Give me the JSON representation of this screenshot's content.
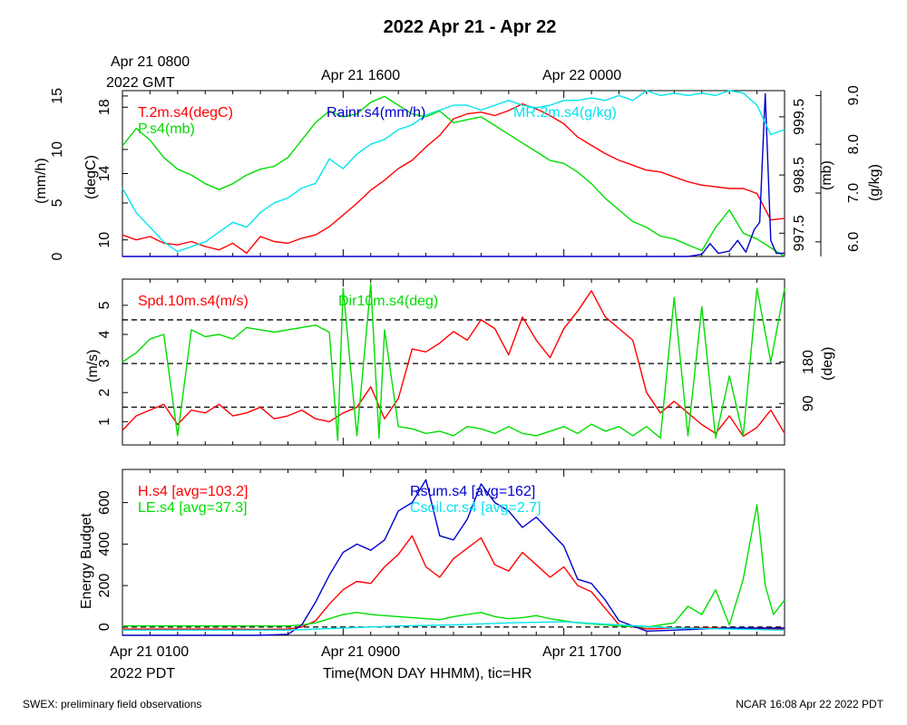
{
  "title": "2022 Apr 21 - Apr 22",
  "top_axis": {
    "first_label": [
      "Apr 21 0800",
      "2022 GMT"
    ],
    "labels": [
      "Apr 21 1600",
      "Apr 22 0000"
    ]
  },
  "bottom_axis": {
    "first_label": [
      "Apr 21 0100",
      "2022 PDT"
    ],
    "labels": [
      "Apr 21 0900",
      "Apr 21 1700"
    ],
    "xlabel": "Time(MON DAY HHMM), tic=HR"
  },
  "footer": {
    "left": "SWEX: preliminary field observations",
    "right": "NCAR 16:08 Apr 22 2022 PDT"
  },
  "colors": {
    "red": "#ff0000",
    "green": "#00dd00",
    "blue": "#0000cc",
    "cyan": "#00e5ee"
  },
  "chart_data": [
    {
      "type": "line",
      "panel": "top",
      "x_hours_range": [
        0,
        24
      ],
      "axes": {
        "rain": {
          "label": "(mm/h)",
          "ticks": [
            "0",
            "5",
            "10",
            "15"
          ],
          "ylim": [
            0,
            15.5
          ]
        },
        "temp": {
          "label": "(degC)",
          "ticks": [
            "10",
            "14",
            "18"
          ],
          "ylim": [
            9,
            19
          ]
        },
        "pres": {
          "label": "(mb)",
          "ticks": [
            "997.5",
            "998.5",
            "999.5"
          ],
          "ylim": [
            997.1,
            999.95
          ]
        },
        "mr": {
          "label": "(g/kg)",
          "ticks": [
            "6.0",
            "7.0",
            "8.0",
            "9.0"
          ],
          "ylim": [
            5.7,
            9.1
          ]
        }
      },
      "series": [
        {
          "name": "T.2m.s4(degC)",
          "color": "red",
          "axis": "temp",
          "x": [
            0,
            0.5,
            1,
            1.5,
            2,
            2.5,
            3,
            3.5,
            4,
            4.5,
            5,
            5.5,
            6,
            6.5,
            7,
            7.5,
            8,
            8.5,
            9,
            9.5,
            10,
            10.5,
            11,
            11.5,
            12,
            12.5,
            13,
            13.5,
            14,
            14.5,
            15,
            15.5,
            16,
            16.5,
            17,
            17.5,
            18,
            18.5,
            19,
            19.5,
            20,
            20.5,
            21,
            21.5,
            22,
            22.5,
            23,
            23.5,
            24
          ],
          "y": [
            10.3,
            10,
            10.2,
            9.8,
            9.7,
            9.9,
            9.6,
            9.4,
            9.8,
            9.2,
            10.2,
            9.9,
            9.8,
            10.1,
            10.3,
            10.8,
            11.5,
            12.2,
            13,
            13.6,
            14.3,
            14.8,
            15.6,
            16.3,
            17.3,
            17.6,
            17.7,
            17.5,
            17.8,
            18.2,
            17.9,
            17.5,
            17,
            16.2,
            15.7,
            15.2,
            14.8,
            14.5,
            14.2,
            14.1,
            13.8,
            13.5,
            13.3,
            13.2,
            13.1,
            13.1,
            12.8,
            11.2,
            11.3
          ]
        },
        {
          "name": "P.s4(mb)",
          "color": "green",
          "axis": "pres",
          "x": [
            0,
            0.5,
            1,
            1.5,
            2,
            2.5,
            3,
            3.5,
            4,
            4.5,
            5,
            5.5,
            6,
            6.5,
            7,
            7.5,
            8,
            8.5,
            9,
            9.5,
            10,
            10.5,
            11,
            11.5,
            12,
            12.5,
            13,
            13.5,
            14,
            14.5,
            15,
            15.5,
            16,
            16.5,
            17,
            17.5,
            18,
            18.5,
            19,
            19.5,
            20,
            20.5,
            21,
            21.5,
            22,
            22.5,
            23,
            23.5,
            24
          ],
          "y": [
            999.0,
            999.3,
            999.1,
            998.8,
            998.6,
            998.5,
            998.35,
            998.25,
            998.35,
            998.5,
            998.6,
            998.65,
            998.8,
            999.1,
            999.4,
            999.6,
            999.5,
            999.55,
            999.75,
            999.85,
            999.7,
            999.55,
            999.5,
            999.6,
            999.4,
            999.45,
            999.5,
            999.35,
            999.2,
            999.05,
            998.9,
            998.75,
            998.7,
            998.55,
            998.35,
            998.1,
            997.9,
            997.7,
            997.6,
            997.45,
            997.4,
            997.3,
            997.2,
            997.6,
            997.9,
            997.5,
            997.4,
            997.25,
            997.1
          ]
        },
        {
          "name": "Rainr.s4(mm/h)",
          "color": "blue",
          "axis": "rain",
          "x": [
            0,
            1,
            2,
            3,
            4,
            5,
            6,
            7,
            8,
            9,
            10,
            11,
            12,
            13,
            14,
            15,
            16,
            17,
            18,
            19,
            20,
            20.5,
            21,
            21.3,
            21.6,
            22,
            22.3,
            22.6,
            22.9,
            23.1,
            23.3,
            23.5,
            23.7,
            24
          ],
          "y": [
            0,
            0,
            0,
            0,
            0,
            0,
            0,
            0,
            0,
            0,
            0,
            0,
            0,
            0,
            0,
            0,
            0,
            0,
            0,
            0,
            0,
            0,
            0.2,
            1.2,
            0.3,
            0.5,
            1.5,
            0.4,
            2.5,
            3.2,
            15.2,
            1.5,
            0.3,
            0.3
          ]
        },
        {
          "name": "MR.2m.s4(g/kg)",
          "color": "cyan",
          "axis": "mr",
          "x": [
            0,
            0.5,
            1,
            1.5,
            2,
            2.5,
            3,
            3.5,
            4,
            4.5,
            5,
            5.5,
            6,
            6.5,
            7,
            7.5,
            8,
            8.5,
            9,
            9.5,
            10,
            10.5,
            11,
            11.5,
            12,
            12.5,
            13,
            13.5,
            14,
            14.5,
            15,
            15.5,
            16,
            16.5,
            17,
            17.5,
            18,
            18.5,
            19,
            19.5,
            20,
            20.5,
            21,
            21.5,
            22,
            22.5,
            23,
            23.5,
            24
          ],
          "y": [
            7.1,
            6.6,
            6.3,
            6.0,
            5.8,
            5.9,
            6.0,
            6.2,
            6.4,
            6.3,
            6.6,
            6.8,
            6.9,
            7.1,
            7.2,
            7.7,
            7.5,
            7.8,
            8.0,
            8.1,
            8.3,
            8.4,
            8.6,
            8.7,
            8.8,
            8.8,
            8.7,
            8.8,
            8.9,
            8.8,
            8.75,
            8.8,
            8.9,
            8.9,
            8.95,
            8.9,
            9.0,
            8.9,
            9.1,
            9.0,
            9.05,
            9.0,
            9.05,
            9.0,
            9.1,
            9.05,
            8.8,
            8.2,
            8.3
          ]
        }
      ]
    },
    {
      "type": "line",
      "panel": "middle",
      "x_hours_range": [
        0,
        24
      ],
      "axes": {
        "spd": {
          "label": "(m/s)",
          "ticks": [
            "1",
            "2",
            "3",
            "4",
            "5"
          ],
          "ylim": [
            0.2,
            5.9
          ]
        },
        "dir": {
          "label": "(deg)",
          "ticks": [
            "90",
            "180"
          ],
          "ylim": [
            0,
            360
          ]
        }
      },
      "hlines": [
        1.5,
        3.0,
        4.5
      ],
      "series": [
        {
          "name": "Spd.10m.s4(m/s)",
          "color": "red",
          "axis": "spd",
          "x": [
            0,
            0.5,
            1,
            1.5,
            2,
            2.5,
            3,
            3.5,
            4,
            4.5,
            5,
            5.5,
            6,
            6.5,
            7,
            7.5,
            8,
            8.5,
            9,
            9.5,
            10,
            10.5,
            11,
            11.5,
            12,
            12.5,
            13,
            13.5,
            14,
            14.5,
            15,
            15.5,
            16,
            16.5,
            17,
            17.5,
            18,
            18.5,
            19,
            19.5,
            20,
            20.5,
            21,
            21.5,
            22,
            22.5,
            23,
            23.5,
            24
          ],
          "y": [
            0.7,
            1.2,
            1.4,
            1.6,
            0.9,
            1.4,
            1.3,
            1.6,
            1.2,
            1.3,
            1.5,
            1.1,
            1.2,
            1.4,
            1.1,
            1.0,
            1.3,
            1.5,
            2.2,
            1.1,
            1.8,
            3.5,
            3.4,
            3.7,
            4.1,
            3.8,
            4.5,
            4.2,
            3.3,
            4.6,
            3.8,
            3.2,
            4.2,
            4.8,
            5.5,
            4.6,
            4.2,
            3.8,
            2.0,
            1.3,
            1.7,
            1.3,
            0.9,
            0.6,
            1.2,
            0.5,
            0.8,
            1.4,
            0.6
          ]
        },
        {
          "name": "Dir10m.s4(deg)",
          "color": "green",
          "axis": "dir",
          "x": [
            0,
            0.5,
            1,
            1.5,
            2,
            2.5,
            3,
            3.5,
            4,
            4.5,
            5,
            5.5,
            6,
            6.5,
            7,
            7.5,
            7.8,
            8,
            8.5,
            9,
            9.3,
            9.5,
            10,
            10.5,
            11,
            11.5,
            12,
            12.5,
            13,
            13.5,
            14,
            14.5,
            15,
            15.5,
            16,
            16.5,
            17,
            17.5,
            18,
            18.5,
            19,
            19.5,
            20,
            20.5,
            21,
            21.5,
            22,
            22.5,
            23,
            23.5,
            24
          ],
          "y": [
            180,
            200,
            230,
            240,
            20,
            250,
            235,
            240,
            230,
            255,
            250,
            245,
            250,
            255,
            260,
            245,
            10,
            340,
            20,
            350,
            15,
            250,
            40,
            35,
            25,
            30,
            20,
            40,
            35,
            25,
            40,
            25,
            20,
            30,
            40,
            25,
            45,
            30,
            40,
            20,
            40,
            15,
            320,
            20,
            300,
            15,
            150,
            20,
            340,
            180,
            340
          ]
        }
      ]
    },
    {
      "type": "line",
      "panel": "bottom",
      "x_hours_range": [
        0,
        24
      ],
      "axes": {
        "energy": {
          "label": "Energy Budget",
          "ticks": [
            "0",
            "200",
            "400",
            "600"
          ],
          "ylim": [
            -40,
            760
          ]
        }
      },
      "hlines": [
        0
      ],
      "series": [
        {
          "name": "H.s4 [avg=103.2]",
          "color": "red",
          "axis": "energy",
          "x": [
            0,
            1,
            2,
            3,
            4,
            5,
            6,
            6.5,
            7,
            7.5,
            8,
            8.5,
            9,
            9.5,
            10,
            10.5,
            11,
            11.5,
            12,
            12.5,
            13,
            13.5,
            14,
            14.5,
            15,
            15.5,
            16,
            16.5,
            17,
            17.5,
            18,
            19,
            20,
            21,
            22,
            23,
            24
          ],
          "y": [
            -10,
            -10,
            -10,
            -10,
            -10,
            -12,
            -10,
            0,
            30,
            110,
            180,
            220,
            210,
            290,
            350,
            440,
            290,
            240,
            330,
            380,
            430,
            300,
            270,
            360,
            300,
            240,
            290,
            200,
            170,
            90,
            10,
            -10,
            -5,
            -5,
            -5,
            -10,
            -10
          ]
        },
        {
          "name": "LE.s4 [avg=37.3]",
          "color": "green",
          "axis": "energy",
          "x": [
            0,
            1,
            2,
            3,
            4,
            5,
            6,
            6.5,
            7,
            7.5,
            8,
            8.5,
            9,
            9.5,
            10,
            10.5,
            11,
            11.5,
            12,
            12.5,
            13,
            13.5,
            14,
            14.5,
            15,
            15.5,
            16,
            16.5,
            17,
            17.5,
            18,
            19,
            20,
            20.5,
            21,
            21.5,
            22,
            22.5,
            23,
            23.3,
            23.6,
            24
          ],
          "y": [
            5,
            5,
            5,
            5,
            5,
            5,
            5,
            10,
            20,
            40,
            60,
            70,
            60,
            55,
            50,
            45,
            40,
            35,
            50,
            60,
            70,
            50,
            40,
            45,
            55,
            40,
            30,
            20,
            15,
            10,
            5,
            0,
            20,
            100,
            60,
            180,
            10,
            230,
            590,
            200,
            60,
            130
          ]
        },
        {
          "name": "Rsum.s4 [avg=162]",
          "color": "blue",
          "axis": "energy",
          "x": [
            0,
            1,
            2,
            3,
            4,
            5,
            6,
            6.5,
            7,
            7.5,
            8,
            8.5,
            9,
            9.5,
            10,
            10.5,
            11,
            11.5,
            12,
            12.5,
            13,
            13.5,
            14,
            14.5,
            15,
            15.5,
            16,
            16.5,
            17,
            17.5,
            18,
            19,
            20,
            21,
            22,
            23,
            24
          ],
          "y": [
            -40,
            -40,
            -40,
            -40,
            -40,
            -40,
            -35,
            10,
            120,
            250,
            360,
            400,
            370,
            420,
            560,
            600,
            710,
            440,
            420,
            520,
            690,
            600,
            560,
            480,
            530,
            460,
            390,
            230,
            210,
            130,
            30,
            -20,
            -15,
            -10,
            -5,
            -5,
            -5
          ]
        },
        {
          "name": "Csoil.cr.s4 [avg=2.7]",
          "color": "cyan",
          "axis": "energy",
          "x": [
            0,
            2,
            4,
            6,
            8,
            10,
            12,
            14,
            16,
            18,
            20,
            22,
            24
          ],
          "y": [
            -15,
            -15,
            -15,
            -15,
            -5,
            5,
            10,
            20,
            25,
            10,
            -5,
            -10,
            -15
          ]
        }
      ]
    }
  ]
}
